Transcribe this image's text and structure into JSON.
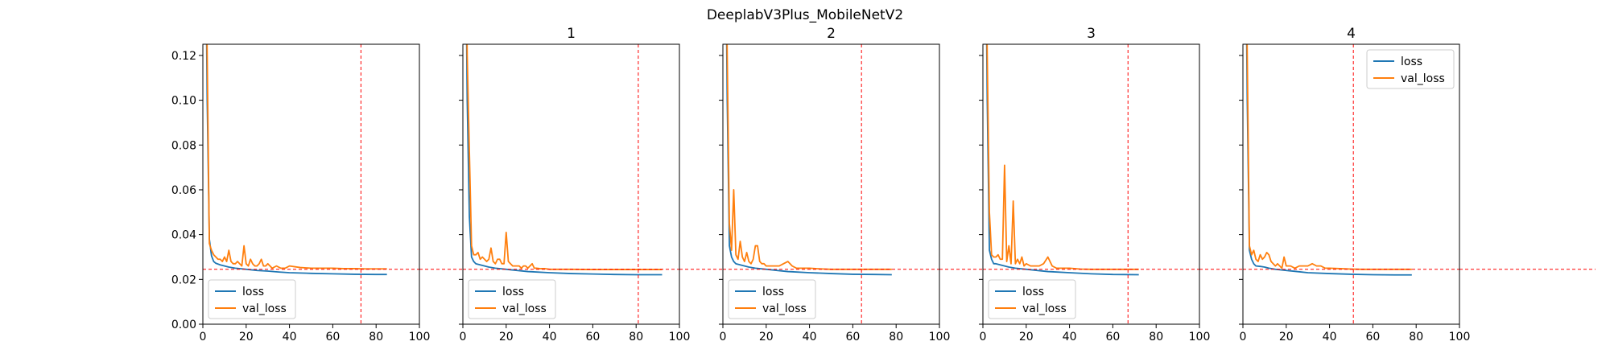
{
  "chart_data": {
    "suptitle": "DeeplabV3Plus_MobileNetV2",
    "type": "line",
    "shared_y": true,
    "xlim": [
      0,
      100
    ],
    "ylim": [
      0.0,
      0.125
    ],
    "xticks": [
      0,
      20,
      40,
      60,
      80,
      100
    ],
    "yticks": [
      0.0,
      0.02,
      0.04,
      0.06,
      0.08,
      0.1,
      0.12
    ],
    "ytick_labels": [
      "0.00",
      "0.02",
      "0.04",
      "0.06",
      "0.08",
      "0.10",
      "0.12"
    ],
    "series_colors": {
      "loss": "#1f77b4",
      "val_loss": "#ff7f0e"
    },
    "reference_line_color": "#ff0000",
    "panels": [
      {
        "title": "",
        "legend_loc": "lower left",
        "legend": [
          "loss",
          "val_loss"
        ],
        "best_epoch": 73,
        "best_val_loss": 0.0245,
        "series": [
          {
            "name": "loss",
            "x": [
              1,
              2,
              3,
              4,
              5,
              6,
              8,
              10,
              12,
              15,
              20,
              25,
              30,
              35,
              40,
              50,
              60,
              70,
              80,
              85
            ],
            "y": [
              0.2,
              0.1,
              0.038,
              0.0305,
              0.028,
              0.0272,
              0.0265,
              0.026,
              0.0255,
              0.025,
              0.0245,
              0.024,
              0.0237,
              0.0233,
              0.023,
              0.0227,
              0.0225,
              0.0223,
              0.0222,
              0.0222
            ]
          },
          {
            "name": "val_loss",
            "x": [
              1,
              2,
              3,
              4,
              5,
              6,
              7,
              8,
              9,
              10,
              11,
              12,
              13,
              14,
              15,
              16,
              17,
              18,
              19,
              20,
              21,
              22,
              23,
              24,
              25,
              26,
              27,
              28,
              29,
              30,
              32,
              34,
              36,
              38,
              40,
              45,
              50,
              55,
              60,
              65,
              70,
              75,
              80,
              85
            ],
            "y": [
              0.2,
              0.12,
              0.036,
              0.033,
              0.031,
              0.03,
              0.029,
              0.029,
              0.028,
              0.03,
              0.028,
              0.033,
              0.028,
              0.027,
              0.027,
              0.028,
              0.027,
              0.026,
              0.035,
              0.027,
              0.026,
              0.029,
              0.027,
              0.026,
              0.026,
              0.027,
              0.029,
              0.026,
              0.026,
              0.027,
              0.025,
              0.026,
              0.025,
              0.025,
              0.026,
              0.0253,
              0.025,
              0.025,
              0.025,
              0.0248,
              0.0248,
              0.0247,
              0.0247,
              0.0247
            ]
          }
        ]
      },
      {
        "title": "1",
        "legend_loc": "lower left",
        "legend": [
          "loss",
          "val_loss"
        ],
        "best_epoch": 81,
        "best_val_loss": 0.0245,
        "series": [
          {
            "name": "loss",
            "x": [
              1,
              2,
              3,
              4,
              5,
              6,
              8,
              10,
              12,
              15,
              20,
              25,
              30,
              40,
              50,
              60,
              70,
              80,
              92
            ],
            "y": [
              0.2,
              0.1,
              0.048,
              0.03,
              0.028,
              0.027,
              0.0265,
              0.026,
              0.0255,
              0.025,
              0.0245,
              0.024,
              0.0235,
              0.023,
              0.0226,
              0.0224,
              0.0222,
              0.0221,
              0.0221
            ]
          },
          {
            "name": "val_loss",
            "x": [
              1,
              2,
              3,
              4,
              5,
              6,
              7,
              8,
              9,
              10,
              11,
              12,
              13,
              14,
              15,
              16,
              17,
              18,
              19,
              20,
              21,
              22,
              23,
              24,
              25,
              26,
              27,
              28,
              29,
              30,
              31,
              32,
              33,
              34,
              36,
              38,
              40,
              45,
              50,
              60,
              70,
              80,
              92
            ],
            "y": [
              0.2,
              0.12,
              0.077,
              0.035,
              0.031,
              0.031,
              0.032,
              0.029,
              0.03,
              0.029,
              0.028,
              0.029,
              0.034,
              0.028,
              0.027,
              0.029,
              0.029,
              0.027,
              0.027,
              0.041,
              0.028,
              0.027,
              0.026,
              0.026,
              0.026,
              0.026,
              0.025,
              0.026,
              0.026,
              0.025,
              0.026,
              0.027,
              0.025,
              0.025,
              0.0248,
              0.0248,
              0.0245,
              0.0245,
              0.0245,
              0.0244,
              0.0244,
              0.0244,
              0.0244
            ]
          }
        ]
      },
      {
        "title": "2",
        "legend_loc": "lower left",
        "legend": [
          "loss",
          "val_loss"
        ],
        "best_epoch": 64,
        "best_val_loss": 0.0245,
        "series": [
          {
            "name": "loss",
            "x": [
              1,
              2,
              3,
              4,
              5,
              6,
              8,
              10,
              12,
              15,
              20,
              25,
              30,
              40,
              50,
              60,
              70,
              78
            ],
            "y": [
              0.2,
              0.1,
              0.035,
              0.03,
              0.028,
              0.027,
              0.0265,
              0.026,
              0.0255,
              0.025,
              0.0245,
              0.024,
              0.0235,
              0.023,
              0.0226,
              0.0223,
              0.0222,
              0.0221
            ]
          },
          {
            "name": "val_loss",
            "x": [
              1,
              2,
              3,
              4,
              5,
              6,
              7,
              8,
              9,
              10,
              11,
              12,
              13,
              14,
              15,
              16,
              17,
              18,
              19,
              20,
              22,
              24,
              26,
              28,
              30,
              32,
              34,
              36,
              40,
              45,
              50,
              55,
              60,
              65,
              70,
              78
            ],
            "y": [
              0.2,
              0.12,
              0.045,
              0.033,
              0.06,
              0.031,
              0.029,
              0.037,
              0.03,
              0.028,
              0.032,
              0.028,
              0.027,
              0.029,
              0.035,
              0.035,
              0.028,
              0.027,
              0.027,
              0.026,
              0.026,
              0.026,
              0.026,
              0.027,
              0.028,
              0.026,
              0.025,
              0.025,
              0.025,
              0.0247,
              0.0245,
              0.0245,
              0.0245,
              0.0245,
              0.0245,
              0.0245
            ]
          }
        ]
      },
      {
        "title": "3",
        "legend_loc": "lower left",
        "legend": [
          "loss",
          "val_loss"
        ],
        "best_epoch": 67,
        "best_val_loss": 0.0245,
        "series": [
          {
            "name": "loss",
            "x": [
              1,
              2,
              3,
              4,
              5,
              6,
              8,
              10,
              12,
              15,
              20,
              25,
              30,
              40,
              50,
              60,
              72
            ],
            "y": [
              0.2,
              0.1,
              0.033,
              0.029,
              0.027,
              0.027,
              0.0265,
              0.026,
              0.0255,
              0.025,
              0.0245,
              0.024,
              0.0235,
              0.023,
              0.0225,
              0.0222,
              0.0221
            ]
          },
          {
            "name": "val_loss",
            "x": [
              1,
              2,
              3,
              4,
              5,
              6,
              7,
              8,
              9,
              10,
              11,
              12,
              13,
              14,
              15,
              16,
              17,
              18,
              19,
              20,
              22,
              24,
              26,
              28,
              30,
              32,
              34,
              36,
              40,
              45,
              50,
              55,
              60,
              65,
              72
            ],
            "y": [
              0.2,
              0.12,
              0.05,
              0.031,
              0.03,
              0.03,
              0.031,
              0.029,
              0.029,
              0.071,
              0.028,
              0.035,
              0.027,
              0.055,
              0.027,
              0.029,
              0.027,
              0.03,
              0.026,
              0.027,
              0.026,
              0.026,
              0.026,
              0.027,
              0.03,
              0.026,
              0.025,
              0.025,
              0.025,
              0.0246,
              0.0245,
              0.0245,
              0.0245,
              0.0245,
              0.0245
            ]
          }
        ]
      },
      {
        "title": "4",
        "legend_loc": "upper right",
        "legend": [
          "loss",
          "val_loss"
        ],
        "best_epoch": 51,
        "best_val_loss": 0.0245,
        "series": [
          {
            "name": "loss",
            "x": [
              1,
              2,
              3,
              4,
              5,
              6,
              8,
              10,
              12,
              15,
              20,
              25,
              30,
              40,
              50,
              60,
              70,
              78
            ],
            "y": [
              0.2,
              0.1,
              0.033,
              0.029,
              0.027,
              0.026,
              0.0258,
              0.0255,
              0.025,
              0.0245,
              0.024,
              0.0235,
              0.023,
              0.0226,
              0.0223,
              0.0221,
              0.022,
              0.022
            ]
          },
          {
            "name": "val_loss",
            "x": [
              1,
              2,
              3,
              4,
              5,
              6,
              7,
              8,
              9,
              10,
              11,
              12,
              13,
              14,
              15,
              16,
              17,
              18,
              19,
              20,
              22,
              24,
              26,
              28,
              30,
              32,
              34,
              36,
              38,
              40,
              45,
              50,
              55,
              60,
              65,
              70,
              78
            ],
            "y": [
              0.2,
              0.12,
              0.035,
              0.031,
              0.033,
              0.029,
              0.028,
              0.031,
              0.029,
              0.03,
              0.032,
              0.031,
              0.028,
              0.027,
              0.026,
              0.027,
              0.026,
              0.025,
              0.03,
              0.026,
              0.026,
              0.025,
              0.026,
              0.026,
              0.026,
              0.027,
              0.026,
              0.026,
              0.025,
              0.025,
              0.0248,
              0.0246,
              0.0245,
              0.0245,
              0.0245,
              0.0245,
              0.0245
            ]
          }
        ]
      }
    ]
  }
}
